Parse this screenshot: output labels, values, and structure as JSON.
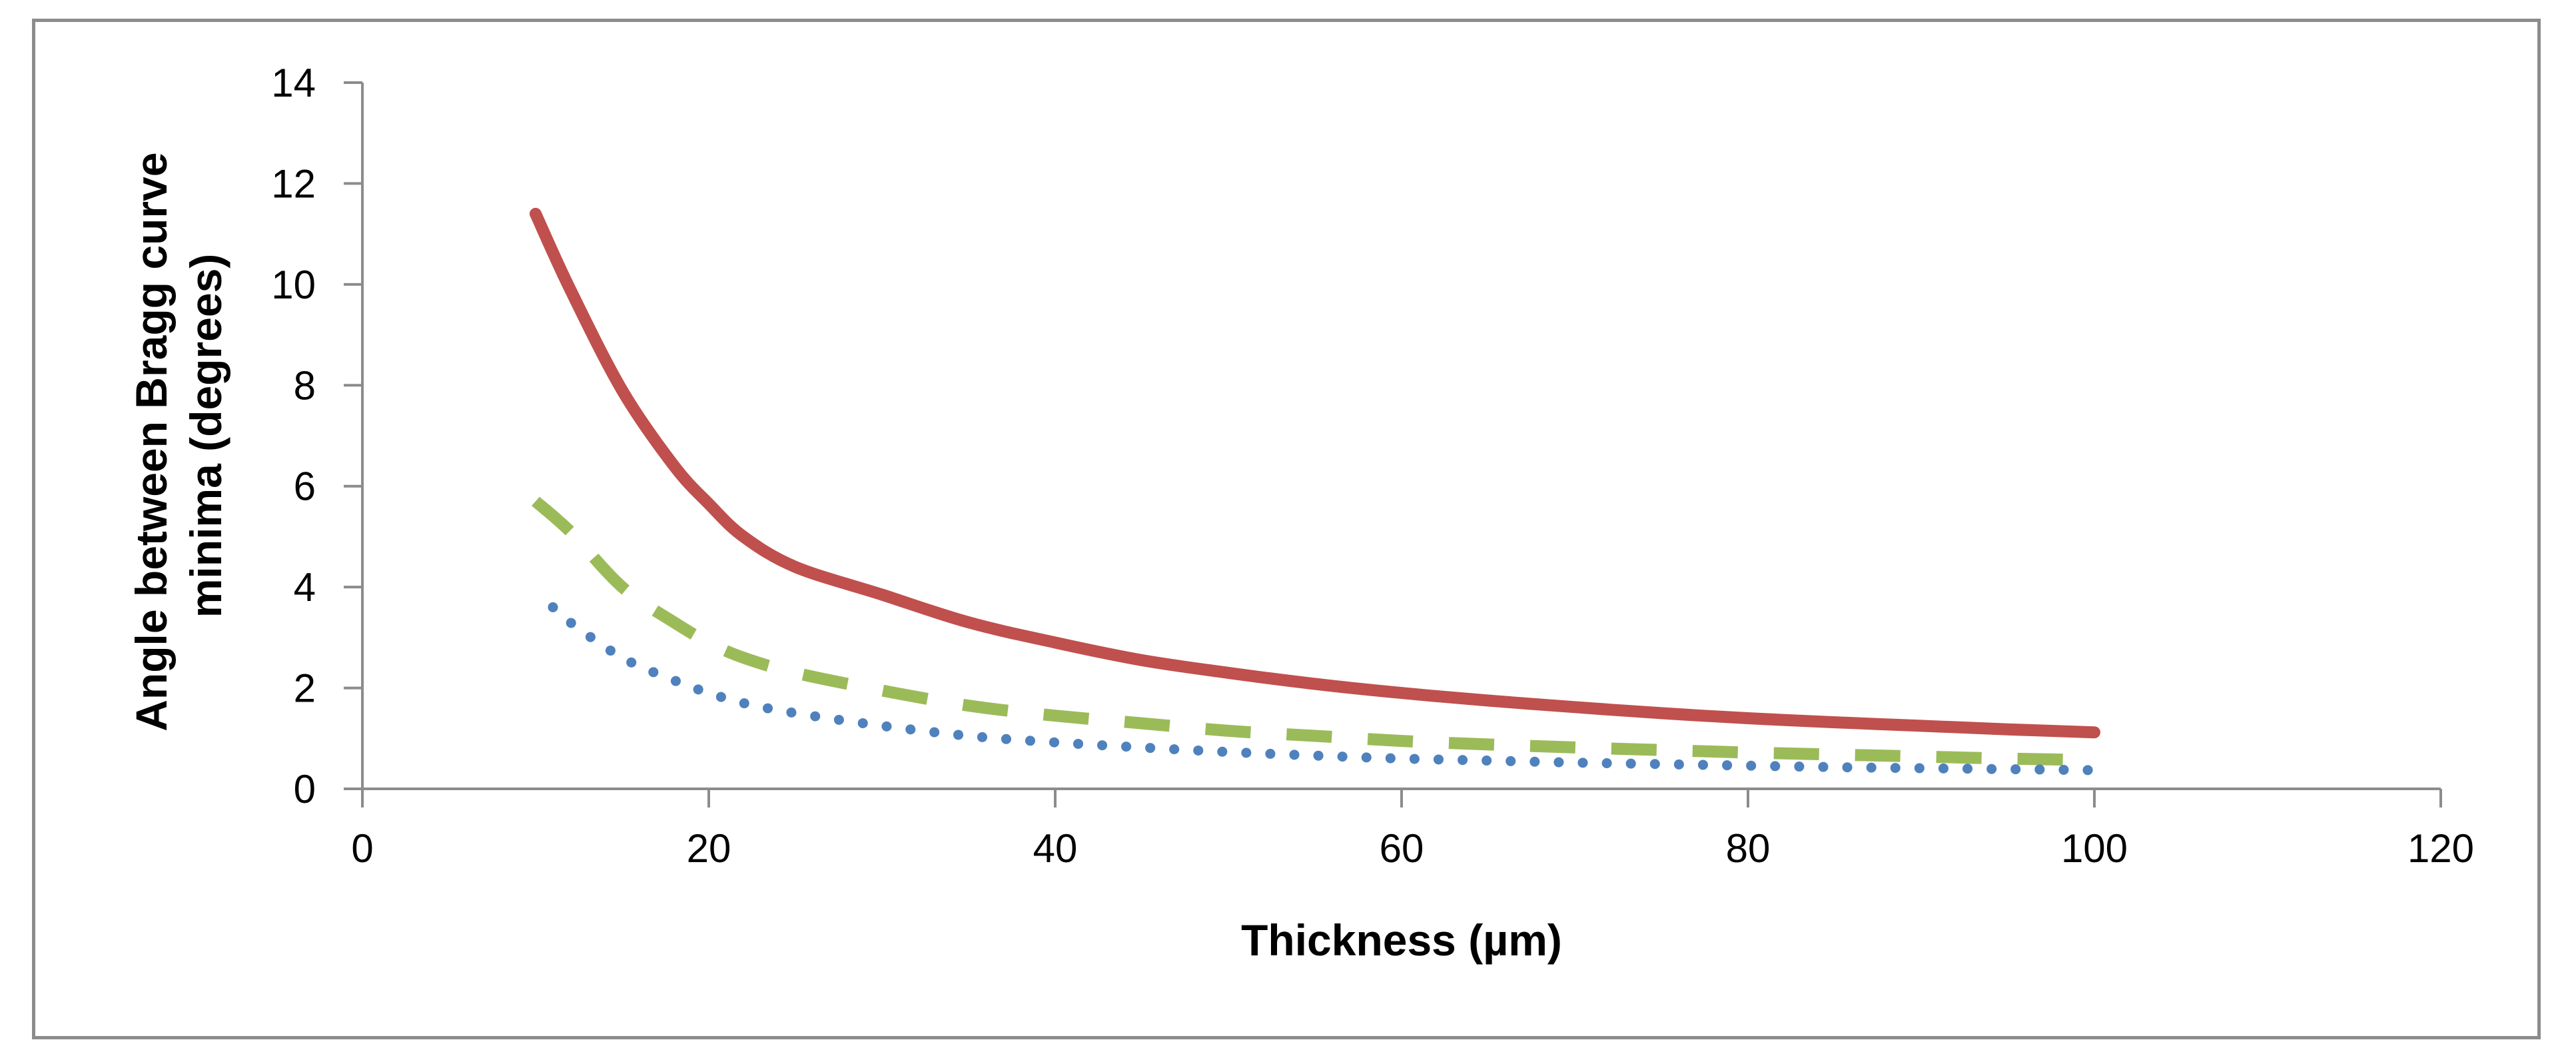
{
  "chart_data": {
    "type": "line",
    "title": "",
    "xlabel": "Thickness (µm)",
    "ylabel_lines": [
      "Angle between Bragg curve",
      "minima (degrees)"
    ],
    "xlim": [
      0,
      120
    ],
    "ylim": [
      0,
      14
    ],
    "x_ticks": [
      0,
      20,
      40,
      60,
      80,
      100,
      120
    ],
    "y_ticks": [
      0,
      2,
      4,
      6,
      8,
      10,
      12,
      14
    ],
    "grid": false,
    "legend": "none",
    "series": [
      {
        "name": "solid",
        "color": "#C0504D",
        "style": "solid",
        "x": [
          10,
          12,
          15,
          18,
          20,
          22,
          25,
          30,
          35,
          40,
          45,
          50,
          55,
          60,
          65,
          70,
          75,
          80,
          85,
          90,
          95,
          100
        ],
        "y": [
          11.4,
          9.9,
          7.9,
          6.4,
          5.65,
          5.0,
          4.4,
          3.85,
          3.3,
          2.9,
          2.55,
          2.3,
          2.08,
          1.9,
          1.75,
          1.62,
          1.5,
          1.4,
          1.32,
          1.25,
          1.18,
          1.12
        ]
      },
      {
        "name": "dashed",
        "color": "#9BBB59",
        "style": "dashed",
        "x": [
          10,
          12,
          15,
          18,
          20,
          22,
          25,
          30,
          35,
          40,
          45,
          50,
          55,
          60,
          65,
          70,
          75,
          80,
          85,
          90,
          95,
          100
        ],
        "y": [
          5.7,
          5.1,
          4.0,
          3.3,
          2.9,
          2.6,
          2.3,
          1.95,
          1.65,
          1.45,
          1.3,
          1.15,
          1.05,
          0.95,
          0.88,
          0.82,
          0.77,
          0.72,
          0.68,
          0.64,
          0.6,
          0.57
        ]
      },
      {
        "name": "dotted",
        "color": "#4F81BD",
        "style": "dotted",
        "x": [
          11,
          12,
          15,
          18,
          20,
          22,
          25,
          30,
          35,
          40,
          45,
          50,
          55,
          60,
          65,
          70,
          75,
          80,
          85,
          90,
          95,
          100
        ],
        "y": [
          3.6,
          3.3,
          2.6,
          2.15,
          1.9,
          1.7,
          1.5,
          1.25,
          1.05,
          0.92,
          0.82,
          0.73,
          0.66,
          0.6,
          0.56,
          0.52,
          0.49,
          0.46,
          0.43,
          0.41,
          0.39,
          0.37
        ]
      }
    ]
  }
}
